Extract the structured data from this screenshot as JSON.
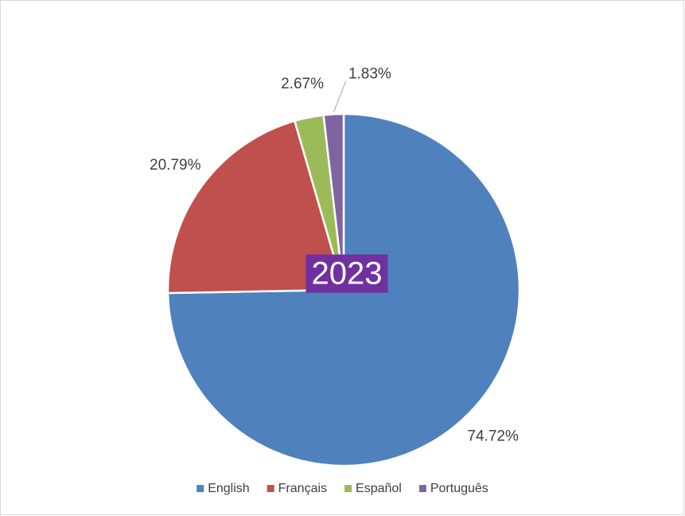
{
  "chart_data": {
    "type": "pie",
    "annotation": "2023",
    "categories": [
      "English",
      "Français",
      "Español",
      "Português"
    ],
    "values": [
      74.72,
      20.79,
      2.67,
      1.83
    ],
    "value_labels": [
      "74.72%",
      "20.79%",
      "2.67%",
      "1.83%"
    ],
    "colors": [
      "#4f81bd",
      "#c0504d",
      "#9bbb59",
      "#8064a2"
    ],
    "legend": "bottom"
  }
}
